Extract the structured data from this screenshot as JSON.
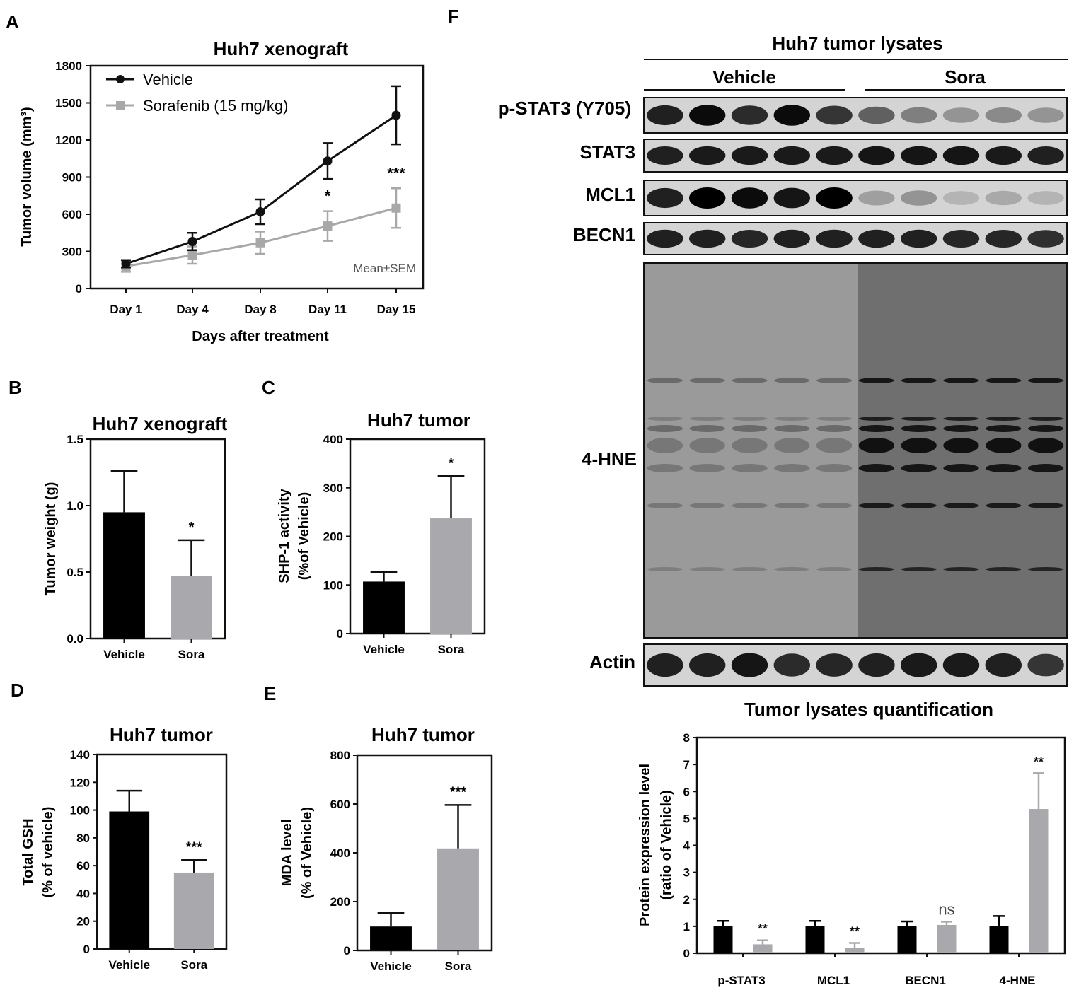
{
  "panels": {
    "A": "A",
    "B": "B",
    "C": "C",
    "D": "D",
    "E": "E",
    "F": "F"
  },
  "chart_data": [
    {
      "id": "A",
      "type": "line",
      "title": "Huh7 xenograft",
      "xlabel": "Days after treatment",
      "ylabel": "Tumor volume (mm³)",
      "categories": [
        "Day 1",
        "Day 4",
        "Day 8",
        "Day 11",
        "Day 15"
      ],
      "ylim": [
        0,
        1800
      ],
      "yticks": [
        0,
        300,
        600,
        900,
        1200,
        1500,
        1800
      ],
      "annotation": "Mean±SEM",
      "legend_position": "top-left",
      "series": [
        {
          "name": "Vehicle",
          "color": "#111111",
          "marker": "circle",
          "values": [
            200,
            380,
            620,
            1030,
            1400
          ],
          "err": [
            30,
            70,
            100,
            145,
            235
          ]
        },
        {
          "name": "Sorafenib (15 mg/kg)",
          "color": "#a8a8a8",
          "marker": "square",
          "values": [
            180,
            270,
            370,
            505,
            650
          ],
          "err": [
            45,
            70,
            90,
            120,
            160
          ]
        }
      ],
      "significance": [
        "",
        "",
        "",
        "*",
        "***"
      ]
    },
    {
      "id": "B",
      "type": "bar",
      "title": "Huh7 xenograft",
      "ylabel": "Tumor weight (g)",
      "categories": [
        "Vehicle",
        "Sora"
      ],
      "values": [
        0.95,
        0.47
      ],
      "err": [
        0.31,
        0.27
      ],
      "ylim": [
        0,
        1.5
      ],
      "yticks": [
        0.0,
        0.5,
        1.0,
        1.5
      ],
      "tick_decimals": 1,
      "colors": [
        "#000000",
        "#a9a9ad"
      ],
      "significance": [
        "",
        "*"
      ]
    },
    {
      "id": "C",
      "type": "bar",
      "title": "Huh7 tumor",
      "ylabel": "SHP-1 activity",
      "ylabel2": "(%of Vehicle)",
      "categories": [
        "Vehicle",
        "Sora"
      ],
      "values": [
        107,
        237
      ],
      "err": [
        20,
        87
      ],
      "ylim": [
        0,
        400
      ],
      "yticks": [
        0,
        100,
        200,
        300,
        400
      ],
      "tick_decimals": 0,
      "colors": [
        "#000000",
        "#a9a9ad"
      ],
      "significance": [
        "",
        "*"
      ]
    },
    {
      "id": "D",
      "type": "bar",
      "title": "Huh7 tumor",
      "ylabel": "Total GSH",
      "ylabel2": "(% of vehicle)",
      "categories": [
        "Vehicle",
        "Sora"
      ],
      "values": [
        99,
        55
      ],
      "err": [
        15,
        9
      ],
      "ylim": [
        0,
        140
      ],
      "yticks": [
        0,
        20,
        40,
        60,
        80,
        100,
        120,
        140
      ],
      "tick_decimals": 0,
      "colors": [
        "#000000",
        "#a9a9ad"
      ],
      "significance": [
        "",
        "***"
      ]
    },
    {
      "id": "E",
      "type": "bar",
      "title": "Huh7 tumor",
      "ylabel": "MDA level",
      "ylabel2": "(% of Vehicle)",
      "categories": [
        "Vehicle",
        "Sora"
      ],
      "values": [
        98,
        418
      ],
      "err": [
        55,
        178
      ],
      "ylim": [
        0,
        800
      ],
      "yticks": [
        0,
        200,
        400,
        600,
        800
      ],
      "tick_decimals": 0,
      "colors": [
        "#000000",
        "#a9a9ad"
      ],
      "significance": [
        "",
        "***"
      ]
    },
    {
      "id": "F-quant",
      "type": "bar",
      "title": "Tumor lysates quantification",
      "ylabel": "Protein expression level",
      "ylabel2": "(ratio of Vehicle)",
      "categories": [
        "p-STAT3",
        "MCL1",
        "BECN1",
        "4-HNE"
      ],
      "ylim": [
        0,
        8
      ],
      "yticks": [
        0,
        1,
        2,
        3,
        4,
        5,
        6,
        7,
        8
      ],
      "tick_decimals": 0,
      "series": [
        {
          "name": "Vehicle",
          "color": "#000000",
          "values": [
            1.0,
            1.0,
            1.0,
            1.0
          ],
          "err": [
            0.2,
            0.2,
            0.18,
            0.38
          ]
        },
        {
          "name": "Sora",
          "color": "#a9a9ad",
          "values": [
            0.33,
            0.2,
            1.05,
            5.35
          ],
          "err": [
            0.15,
            0.18,
            0.12,
            1.33
          ]
        }
      ],
      "significance": [
        "**",
        "**",
        "ns",
        "**"
      ]
    }
  ],
  "blot": {
    "title": "Huh7 tumor lysates",
    "groups": [
      "Vehicle",
      "Sora"
    ],
    "lanes_per_group": 5,
    "rows": [
      {
        "label": "p-STAT3 (Y705)",
        "intensity": [
          0.85,
          0.95,
          0.8,
          0.95,
          0.75,
          0.55,
          0.4,
          0.3,
          0.35,
          0.3
        ]
      },
      {
        "label": "STAT3",
        "intensity": [
          0.85,
          0.88,
          0.88,
          0.88,
          0.88,
          0.9,
          0.9,
          0.9,
          0.88,
          0.85
        ]
      },
      {
        "label": "MCL1",
        "intensity": [
          0.85,
          1.0,
          0.95,
          0.9,
          1.0,
          0.25,
          0.3,
          0.15,
          0.2,
          0.15
        ]
      },
      {
        "label": "BECN1",
        "intensity": [
          0.85,
          0.85,
          0.82,
          0.85,
          0.85,
          0.85,
          0.85,
          0.82,
          0.82,
          0.78
        ]
      },
      {
        "label": "4-HNE"
      },
      {
        "label": "Actin",
        "intensity": [
          0.85,
          0.85,
          0.9,
          0.8,
          0.82,
          0.85,
          0.88,
          0.88,
          0.85,
          0.75
        ]
      }
    ]
  }
}
